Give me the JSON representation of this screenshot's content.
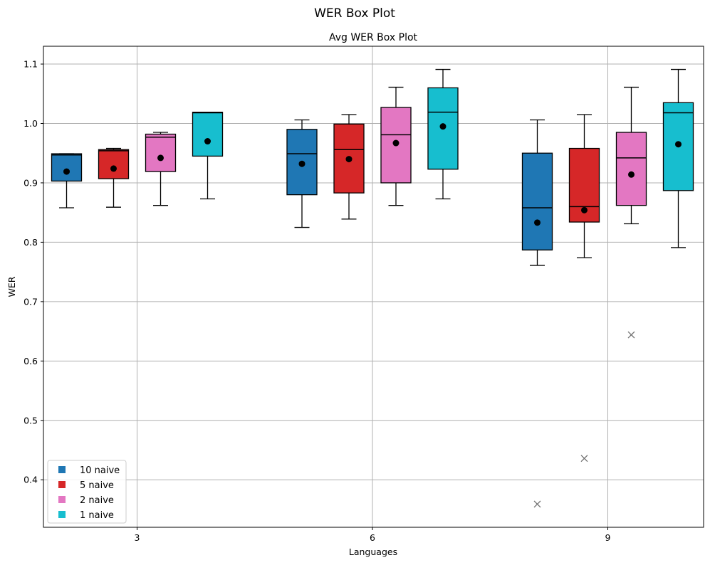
{
  "chart_data": {
    "type": "box",
    "title": "WER Box Plot",
    "subtitle": "Avg WER Box Plot",
    "xlabel": "Languages",
    "ylabel": "WER",
    "ylim": [
      0.32,
      1.13
    ],
    "yticks": [
      0.4,
      0.5,
      0.6,
      0.7,
      0.8,
      0.9,
      1.0,
      1.1
    ],
    "ytick_labels": [
      "0.4",
      "0.5",
      "0.6",
      "0.7",
      "0.8",
      "0.9",
      "1.0",
      "1.1"
    ],
    "categories": [
      "3",
      "6",
      "9"
    ],
    "grid": true,
    "legend_position": "lower-left",
    "series": [
      {
        "name": "10 naive",
        "color": "#1f77b4",
        "boxes": [
          {
            "whislo": 0.858,
            "q1": 0.903,
            "med": 0.947,
            "q3": 0.949,
            "whishi": 0.949,
            "mean": 0.919,
            "fliers": []
          },
          {
            "whislo": 0.825,
            "q1": 0.88,
            "med": 0.949,
            "q3": 0.99,
            "whishi": 1.006,
            "mean": 0.932,
            "fliers": []
          },
          {
            "whislo": 0.761,
            "q1": 0.787,
            "med": 0.858,
            "q3": 0.95,
            "whishi": 1.006,
            "mean": 0.833,
            "fliers": [
              0.359
            ]
          }
        ]
      },
      {
        "name": "5 naive",
        "color": "#d62728",
        "boxes": [
          {
            "whislo": 0.859,
            "q1": 0.907,
            "med": 0.954,
            "q3": 0.956,
            "whishi": 0.958,
            "mean": 0.924,
            "fliers": []
          },
          {
            "whislo": 0.839,
            "q1": 0.883,
            "med": 0.956,
            "q3": 0.999,
            "whishi": 1.015,
            "mean": 0.94,
            "fliers": []
          },
          {
            "whislo": 0.774,
            "q1": 0.834,
            "med": 0.86,
            "q3": 0.958,
            "whishi": 1.015,
            "mean": 0.854,
            "fliers": [
              0.436
            ]
          }
        ]
      },
      {
        "name": "2 naive",
        "color": "#e377c2",
        "boxes": [
          {
            "whislo": 0.862,
            "q1": 0.919,
            "med": 0.977,
            "q3": 0.982,
            "whishi": 0.985,
            "mean": 0.942,
            "fliers": []
          },
          {
            "whislo": 0.862,
            "q1": 0.9,
            "med": 0.981,
            "q3": 1.027,
            "whishi": 1.061,
            "mean": 0.967,
            "fliers": []
          },
          {
            "whislo": 0.831,
            "q1": 0.862,
            "med": 0.942,
            "q3": 0.985,
            "whishi": 1.061,
            "mean": 0.914,
            "fliers": [
              0.644
            ]
          }
        ]
      },
      {
        "name": "1 naive",
        "color": "#17becf",
        "boxes": [
          {
            "whislo": 0.873,
            "q1": 0.945,
            "med": 1.018,
            "q3": 1.019,
            "whishi": 1.019,
            "mean": 0.97,
            "fliers": []
          },
          {
            "whislo": 0.873,
            "q1": 0.923,
            "med": 1.019,
            "q3": 1.06,
            "whishi": 1.091,
            "mean": 0.995,
            "fliers": []
          },
          {
            "whislo": 0.791,
            "q1": 0.887,
            "med": 1.018,
            "q3": 1.035,
            "whishi": 1.091,
            "mean": 0.965,
            "fliers": []
          }
        ]
      }
    ]
  }
}
